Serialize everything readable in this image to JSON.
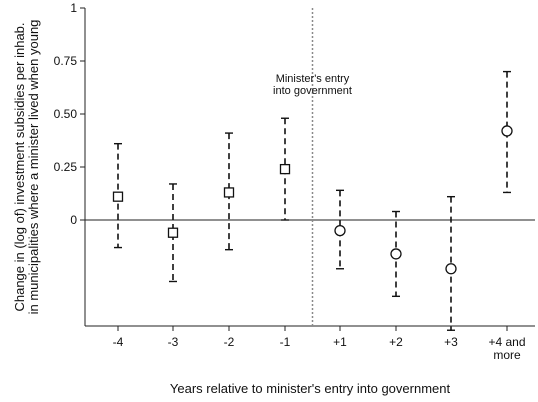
{
  "chart_data": {
    "type": "scatter",
    "title": "",
    "xlabel": "Years relative to minister's entry into government",
    "ylabel_lines": [
      "Change in (log of) investment subsidies per inhab.",
      "in municipalities where a minister lived when young"
    ],
    "categories": [
      "-4",
      "-3",
      "-2",
      "-1",
      "+1",
      "+2",
      "+3",
      "+4 and more"
    ],
    "ylim": [
      -0.5,
      1
    ],
    "yticks": [
      {
        "value": 1,
        "label": "1"
      },
      {
        "value": 0.75,
        "label": "0.75"
      },
      {
        "value": 0.5,
        "label": "0.50"
      },
      {
        "value": 0.25,
        "label": "0.25"
      },
      {
        "value": 0,
        "label": "0"
      }
    ],
    "series": [
      {
        "marker": "square",
        "categories": [
          "-4",
          "-3",
          "-2",
          "-1"
        ],
        "estimate": [
          0.11,
          -0.06,
          0.13,
          0.24
        ],
        "ci_low": [
          -0.13,
          -0.29,
          -0.14,
          0.0
        ],
        "ci_high": [
          0.36,
          0.17,
          0.41,
          0.48
        ]
      },
      {
        "marker": "circle",
        "categories": [
          "+1",
          "+2",
          "+3",
          "+4 and more"
        ],
        "estimate": [
          -0.05,
          -0.16,
          -0.23,
          0.42
        ],
        "ci_low": [
          -0.23,
          -0.36,
          -0.52,
          0.13
        ],
        "ci_high": [
          0.14,
          0.04,
          0.11,
          0.7
        ]
      }
    ],
    "zero_line": true,
    "annotation": {
      "lines": [
        "Minister's entry",
        "into government"
      ],
      "between": [
        "-1",
        "+1"
      ]
    },
    "grid": false,
    "legend": "none",
    "colors": {
      "marks": "#111111",
      "axis": "#222222",
      "divider": "#8a8a8a"
    }
  }
}
